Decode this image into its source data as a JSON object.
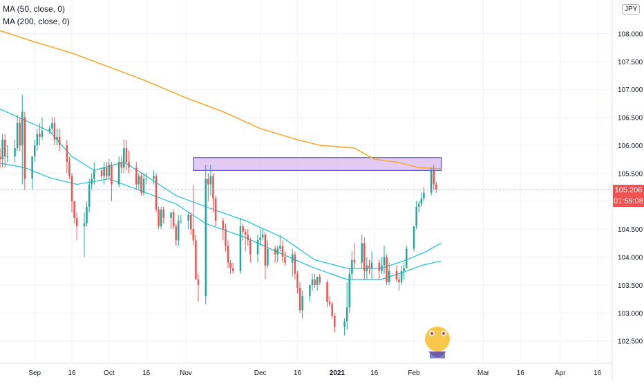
{
  "legend": {
    "ma50_label": "MA (50, close, 0)",
    "ma200_label": "MA (200, close, 0)"
  },
  "currency_label": "JPY",
  "last_price_label": "105.206",
  "countdown_label": "01:59:08",
  "colors": {
    "up": "#26a69a",
    "down": "#ef5350",
    "ma50": "#26c6da",
    "ma200": "#f9a825",
    "zone_fill": "#d9b8f0",
    "zone_border": "#3f3fc8",
    "price_line": "#b2b5be",
    "grid": "#f0f3fa"
  },
  "chart_data": {
    "type": "candlestick",
    "symbol_currency": "JPY",
    "ylim": [
      102.1,
      108.6
    ],
    "y_ticks": [
      "102.500",
      "103.000",
      "103.500",
      "104.000",
      "104.500",
      "105.000",
      "105.500",
      "106.000",
      "106.500",
      "107.000",
      "107.500",
      "108.000"
    ],
    "x_range": [
      "2020-08-18",
      "2021-04-22"
    ],
    "x_ticks": [
      {
        "date": "2020-09-01",
        "label": "Sep"
      },
      {
        "date": "2020-09-16",
        "label": "16"
      },
      {
        "date": "2020-10-01",
        "label": "Oct"
      },
      {
        "date": "2020-10-16",
        "label": "16"
      },
      {
        "date": "2020-11-01",
        "label": "Nov"
      },
      {
        "date": "2020-12-01",
        "label": "Dec"
      },
      {
        "date": "2020-12-16",
        "label": "16"
      },
      {
        "date": "2021-01-01",
        "label": "2021"
      },
      {
        "date": "2021-01-16",
        "label": "16"
      },
      {
        "date": "2021-02-01",
        "label": "Feb"
      },
      {
        "date": "2021-03-01",
        "label": "Mar"
      },
      {
        "date": "2021-03-16",
        "label": "16"
      },
      {
        "date": "2021-04-01",
        "label": "Apr"
      },
      {
        "date": "2021-04-16",
        "label": "16"
      }
    ],
    "last_price": 105.206,
    "candles": [
      [
        "2020-08-18",
        105.8,
        105.95,
        105.6,
        105.75
      ],
      [
        "2020-08-19",
        105.75,
        106.2,
        105.6,
        106.1
      ],
      [
        "2020-08-20",
        106.1,
        106.2,
        105.6,
        105.8
      ],
      [
        "2020-08-21",
        105.8,
        106.0,
        105.7,
        105.8
      ],
      [
        "2020-08-24",
        105.8,
        106.1,
        105.7,
        105.95
      ],
      [
        "2020-08-25",
        105.95,
        106.55,
        105.9,
        106.4
      ],
      [
        "2020-08-26",
        106.4,
        106.5,
        105.9,
        106.0
      ],
      [
        "2020-08-27",
        106.0,
        106.9,
        105.3,
        106.6
      ],
      [
        "2020-08-28",
        106.5,
        106.6,
        105.2,
        105.4
      ],
      [
        "2020-08-31",
        105.4,
        105.8,
        105.2,
        105.8
      ],
      [
        "2020-09-01",
        105.8,
        106.1,
        105.7,
        106.0
      ],
      [
        "2020-09-02",
        106.0,
        106.3,
        105.9,
        106.2
      ],
      [
        "2020-09-03",
        106.2,
        106.4,
        106.0,
        106.15
      ],
      [
        "2020-09-04",
        106.15,
        106.5,
        106.1,
        106.25
      ],
      [
        "2020-09-07",
        106.25,
        106.35,
        106.2,
        106.3
      ],
      [
        "2020-09-08",
        106.3,
        106.5,
        106.2,
        106.4
      ],
      [
        "2020-09-09",
        106.4,
        106.5,
        106.0,
        106.1
      ],
      [
        "2020-09-10",
        106.1,
        106.3,
        106.0,
        106.15
      ],
      [
        "2020-09-11",
        106.15,
        106.3,
        105.9,
        106.0
      ],
      [
        "2020-09-14",
        106.0,
        106.1,
        105.5,
        105.7
      ],
      [
        "2020-09-15",
        105.7,
        105.8,
        105.4,
        105.45
      ],
      [
        "2020-09-16",
        105.45,
        105.5,
        104.8,
        105.0
      ],
      [
        "2020-09-17",
        105.0,
        105.0,
        104.6,
        104.7
      ],
      [
        "2020-09-18",
        104.7,
        104.8,
        104.3,
        104.55
      ],
      [
        "2020-09-21",
        104.55,
        104.8,
        104.0,
        104.6
      ],
      [
        "2020-09-22",
        104.6,
        105.0,
        104.55,
        104.9
      ],
      [
        "2020-09-23",
        104.9,
        105.4,
        104.8,
        105.3
      ],
      [
        "2020-09-24",
        105.3,
        105.5,
        105.2,
        105.4
      ],
      [
        "2020-09-25",
        105.4,
        105.7,
        105.3,
        105.55
      ],
      [
        "2020-09-28",
        105.55,
        105.6,
        105.4,
        105.45
      ],
      [
        "2020-09-29",
        105.45,
        105.7,
        105.3,
        105.6
      ],
      [
        "2020-09-30",
        105.6,
        105.7,
        105.4,
        105.45
      ],
      [
        "2020-10-01",
        105.45,
        105.75,
        105.4,
        105.65
      ],
      [
        "2020-10-02",
        105.65,
        105.7,
        105.0,
        105.3
      ],
      [
        "2020-10-05",
        105.3,
        105.8,
        105.25,
        105.7
      ],
      [
        "2020-10-06",
        105.7,
        105.8,
        105.5,
        105.6
      ],
      [
        "2020-10-07",
        105.6,
        106.1,
        105.5,
        105.95
      ],
      [
        "2020-10-08",
        105.95,
        106.1,
        105.55,
        105.7
      ],
      [
        "2020-10-09",
        105.7,
        105.9,
        105.5,
        105.6
      ],
      [
        "2020-10-12",
        105.6,
        105.7,
        105.2,
        105.3
      ],
      [
        "2020-10-13",
        105.3,
        105.5,
        105.2,
        105.45
      ],
      [
        "2020-10-14",
        105.45,
        105.5,
        105.1,
        105.15
      ],
      [
        "2020-10-15",
        105.15,
        105.5,
        105.1,
        105.4
      ],
      [
        "2020-10-16",
        105.4,
        105.5,
        105.3,
        105.4
      ],
      [
        "2020-10-19",
        105.4,
        105.55,
        105.3,
        105.45
      ],
      [
        "2020-10-20",
        105.45,
        105.5,
        104.8,
        104.85
      ],
      [
        "2020-10-21",
        104.85,
        104.9,
        104.5,
        104.55
      ],
      [
        "2020-10-22",
        104.55,
        104.9,
        104.5,
        104.85
      ],
      [
        "2020-10-23",
        104.85,
        104.9,
        104.6,
        104.7
      ],
      [
        "2020-10-26",
        104.7,
        104.8,
        104.5,
        104.8
      ],
      [
        "2020-10-27",
        104.8,
        104.85,
        104.5,
        104.55
      ],
      [
        "2020-10-28",
        104.55,
        104.6,
        104.2,
        104.3
      ],
      [
        "2020-10-29",
        104.3,
        104.75,
        104.2,
        104.65
      ],
      [
        "2020-10-30",
        104.65,
        104.75,
        104.6,
        104.65
      ],
      [
        "2020-11-02",
        104.65,
        104.8,
        104.5,
        104.75
      ],
      [
        "2020-11-03",
        104.75,
        104.8,
        104.4,
        104.5
      ],
      [
        "2020-11-04",
        104.5,
        105.3,
        104.2,
        104.3
      ],
      [
        "2020-11-05",
        104.3,
        104.4,
        103.6,
        103.6
      ],
      [
        "2020-11-06",
        103.6,
        103.7,
        103.2,
        103.5
      ],
      [
        "2020-11-09",
        103.3,
        105.65,
        103.15,
        105.4
      ],
      [
        "2020-11-10",
        105.4,
        105.5,
        105.0,
        105.3
      ],
      [
        "2020-11-11",
        105.3,
        105.65,
        105.1,
        105.45
      ],
      [
        "2020-11-12",
        105.45,
        105.5,
        104.8,
        105.05
      ],
      [
        "2020-11-13",
        105.05,
        105.1,
        104.55,
        104.65
      ],
      [
        "2020-11-16",
        104.65,
        104.7,
        104.3,
        104.5
      ],
      [
        "2020-11-17",
        104.5,
        104.6,
        104.1,
        104.2
      ],
      [
        "2020-11-18",
        104.2,
        104.3,
        103.8,
        103.9
      ],
      [
        "2020-11-19",
        103.9,
        103.95,
        103.7,
        103.8
      ],
      [
        "2020-11-20",
        103.8,
        103.9,
        103.7,
        103.75
      ],
      [
        "2020-11-23",
        103.75,
        104.7,
        103.7,
        104.55
      ],
      [
        "2020-11-24",
        104.55,
        104.6,
        104.3,
        104.45
      ],
      [
        "2020-11-25",
        104.45,
        104.5,
        104.1,
        104.4
      ],
      [
        "2020-11-26",
        104.4,
        104.5,
        104.2,
        104.3
      ],
      [
        "2020-11-27",
        104.3,
        104.35,
        103.9,
        104.05
      ],
      [
        "2020-11-30",
        104.05,
        104.4,
        103.9,
        104.3
      ],
      [
        "2020-12-01",
        104.3,
        104.5,
        104.2,
        104.35
      ],
      [
        "2020-12-02",
        104.35,
        104.5,
        104.3,
        104.4
      ],
      [
        "2020-12-03",
        104.4,
        104.45,
        103.6,
        103.85
      ],
      [
        "2020-12-04",
        103.85,
        104.3,
        103.8,
        104.15
      ],
      [
        "2020-12-07",
        104.15,
        104.2,
        103.9,
        104.05
      ],
      [
        "2020-12-08",
        104.05,
        104.2,
        103.9,
        104.15
      ],
      [
        "2020-12-09",
        104.15,
        104.4,
        104.1,
        104.2
      ],
      [
        "2020-12-10",
        104.2,
        104.3,
        103.9,
        104.0
      ],
      [
        "2020-12-11",
        104.0,
        104.1,
        103.85,
        103.9
      ],
      [
        "2020-12-14",
        103.9,
        104.15,
        103.65,
        104.05
      ],
      [
        "2020-12-15",
        104.05,
        104.1,
        103.6,
        103.7
      ],
      [
        "2020-12-16",
        103.7,
        103.75,
        103.35,
        103.45
      ],
      [
        "2020-12-17",
        103.45,
        103.55,
        103.0,
        103.05
      ],
      [
        "2020-12-18",
        103.05,
        103.4,
        102.9,
        103.3
      ],
      [
        "2020-12-21",
        103.3,
        103.5,
        103.2,
        103.5
      ],
      [
        "2020-12-22",
        103.5,
        103.7,
        103.4,
        103.6
      ],
      [
        "2020-12-23",
        103.6,
        103.7,
        103.45,
        103.5
      ],
      [
        "2020-12-24",
        103.5,
        103.65,
        103.4,
        103.65
      ],
      [
        "2020-12-25",
        103.65,
        103.7,
        103.5,
        103.55
      ],
      [
        "2020-12-28",
        103.55,
        103.6,
        103.1,
        103.2
      ],
      [
        "2020-12-29",
        103.2,
        103.3,
        103.1,
        103.15
      ],
      [
        "2020-12-30",
        103.15,
        103.2,
        102.9,
        102.95
      ],
      [
        "2020-12-31",
        102.95,
        103.0,
        102.65,
        102.75
      ],
      [
        "2021-01-04",
        102.75,
        102.9,
        102.6,
        102.85
      ],
      [
        "2021-01-05",
        102.85,
        103.55,
        102.7,
        103.1
      ],
      [
        "2021-01-06",
        103.1,
        103.8,
        103.0,
        103.7
      ],
      [
        "2021-01-07",
        103.7,
        104.1,
        103.6,
        103.95
      ],
      [
        "2021-01-08",
        103.95,
        104.25,
        103.8,
        103.9
      ],
      [
        "2021-01-11",
        103.9,
        104.4,
        103.8,
        104.25
      ],
      [
        "2021-01-12",
        104.25,
        104.35,
        103.6,
        103.75
      ],
      [
        "2021-01-13",
        103.75,
        104.0,
        103.6,
        103.85
      ],
      [
        "2021-01-14",
        103.85,
        103.95,
        103.7,
        103.8
      ],
      [
        "2021-01-15",
        103.8,
        104.1,
        103.6,
        103.9
      ],
      [
        "2021-01-18",
        103.9,
        103.95,
        103.6,
        103.75
      ],
      [
        "2021-01-19",
        103.75,
        104.0,
        103.7,
        103.85
      ],
      [
        "2021-01-20",
        103.85,
        104.2,
        103.7,
        104.0
      ],
      [
        "2021-01-21",
        104.0,
        104.05,
        103.5,
        103.55
      ],
      [
        "2021-01-22",
        103.55,
        103.9,
        103.5,
        103.75
      ],
      [
        "2021-01-25",
        103.75,
        103.85,
        103.55,
        103.6
      ],
      [
        "2021-01-26",
        103.6,
        103.7,
        103.4,
        103.55
      ],
      [
        "2021-01-27",
        103.55,
        103.85,
        103.5,
        103.75
      ],
      [
        "2021-01-28",
        103.75,
        103.9,
        103.6,
        103.8
      ],
      [
        "2021-01-29",
        103.8,
        104.2,
        103.8,
        104.15
      ],
      [
        "2021-02-01",
        104.15,
        104.55,
        104.1,
        104.55
      ],
      [
        "2021-02-02",
        104.55,
        105.0,
        104.5,
        104.9
      ],
      [
        "2021-02-03",
        104.9,
        105.0,
        104.8,
        104.95
      ],
      [
        "2021-02-04",
        104.95,
        105.15,
        104.9,
        105.05
      ],
      [
        "2021-02-05",
        105.05,
        105.25,
        105.0,
        105.15
      ],
      [
        "2021-02-08",
        105.15,
        105.6,
        105.1,
        105.55
      ],
      [
        "2021-02-09",
        105.55,
        105.65,
        105.2,
        105.3
      ],
      [
        "2021-02-10",
        105.3,
        105.35,
        105.15,
        105.21
      ]
    ],
    "ma50_path": [
      [
        "2020-08-18",
        105.68
      ],
      [
        "2020-08-28",
        105.6
      ],
      [
        "2020-09-07",
        105.42
      ],
      [
        "2020-09-18",
        105.3
      ],
      [
        "2020-10-01",
        105.4
      ],
      [
        "2020-10-16",
        105.15
      ],
      [
        "2020-10-28",
        104.95
      ],
      [
        "2020-11-09",
        104.6
      ],
      [
        "2020-11-25",
        104.35
      ],
      [
        "2020-12-10",
        104.05
      ],
      [
        "2020-12-23",
        103.8
      ],
      [
        "2021-01-05",
        103.6
      ],
      [
        "2021-01-19",
        103.6
      ],
      [
        "2021-01-29",
        103.75
      ],
      [
        "2021-02-04",
        103.85
      ],
      [
        "2021-02-12",
        103.93
      ]
    ],
    "ma200_path": [
      [
        "2020-08-18",
        108.05
      ],
      [
        "2020-09-01",
        107.85
      ],
      [
        "2020-09-16",
        107.65
      ],
      [
        "2020-10-01",
        107.4
      ],
      [
        "2020-10-16",
        107.15
      ],
      [
        "2020-11-01",
        106.85
      ],
      [
        "2020-11-16",
        106.6
      ],
      [
        "2020-12-01",
        106.3
      ],
      [
        "2020-12-16",
        106.1
      ],
      [
        "2020-12-25",
        106.0
      ],
      [
        "2021-01-08",
        105.95
      ],
      [
        "2021-01-16",
        105.75
      ],
      [
        "2021-01-25",
        105.7
      ],
      [
        "2021-02-03",
        105.6
      ],
      [
        "2021-02-12",
        105.58
      ]
    ],
    "ma20_path": [
      [
        "2020-08-18",
        106.65
      ],
      [
        "2020-08-28",
        106.45
      ],
      [
        "2020-09-07",
        106.25
      ],
      [
        "2020-09-16",
        105.8
      ],
      [
        "2020-09-25",
        105.55
      ],
      [
        "2020-10-07",
        105.7
      ],
      [
        "2020-10-16",
        105.45
      ],
      [
        "2020-10-28",
        105.1
      ],
      [
        "2020-11-09",
        104.9
      ],
      [
        "2020-11-25",
        104.65
      ],
      [
        "2020-12-10",
        104.35
      ],
      [
        "2020-12-23",
        103.95
      ],
      [
        "2021-01-05",
        103.8
      ],
      [
        "2021-01-19",
        103.8
      ],
      [
        "2021-01-29",
        103.95
      ],
      [
        "2021-02-06",
        104.1
      ],
      [
        "2021-02-12",
        104.25
      ]
    ],
    "resistance_zone": {
      "x0": "2020-11-04",
      "x1": "2021-02-12",
      "y_low": 105.55,
      "y_high": 105.78
    }
  }
}
